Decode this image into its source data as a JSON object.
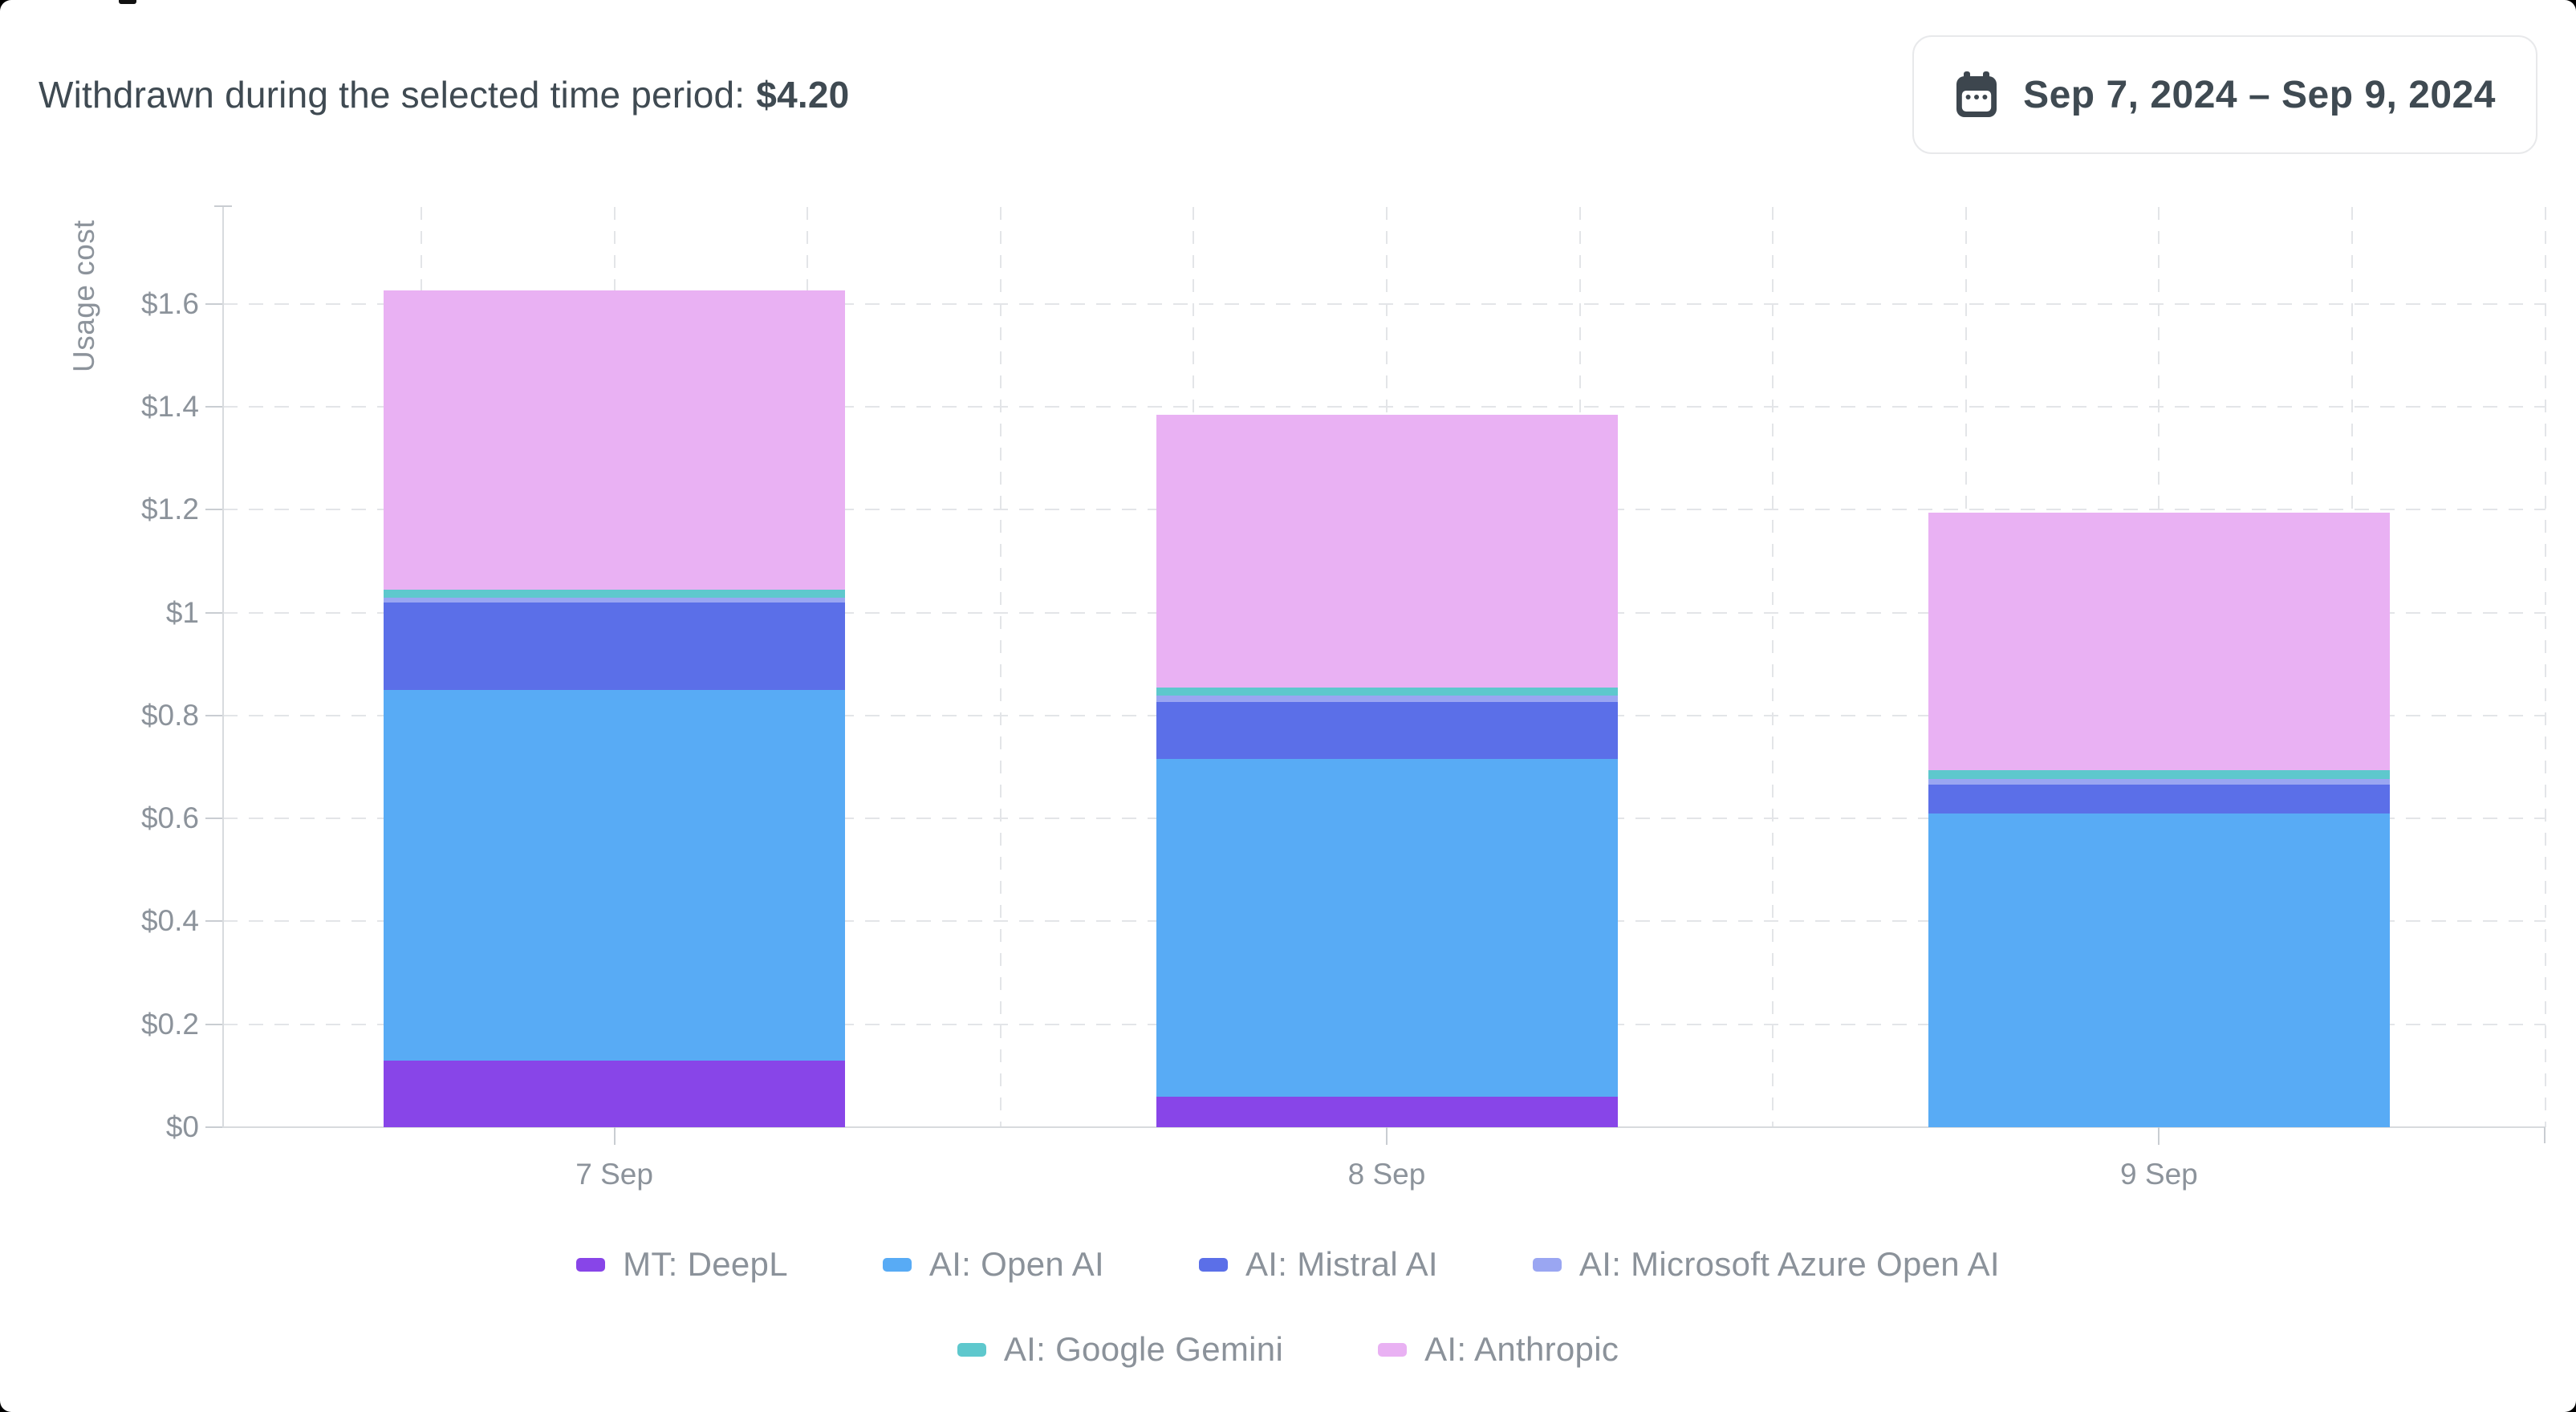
{
  "header": {
    "title_prefix": "Withdrawn during the selected time period:",
    "amount": "$4.20",
    "date_range": "Sep 7, 2024 – Sep 9, 2024"
  },
  "chart_data": {
    "type": "bar",
    "stacked": true,
    "title": "",
    "xlabel": "",
    "ylabel": "Usage cost",
    "categories": [
      "7 Sep",
      "8 Sep",
      "9 Sep"
    ],
    "series": [
      {
        "name": "MT: DeepL",
        "color": "#8845E8",
        "values": [
          0.13,
          0.06,
          0
        ]
      },
      {
        "name": "AI: Open AI",
        "color": "#58ABF5",
        "values": [
          0.72,
          0.655,
          0.61
        ]
      },
      {
        "name": "AI: Mistral AI",
        "color": "#5B6FE8",
        "values": [
          0.17,
          0.112,
          0.056
        ]
      },
      {
        "name": "AI: Microsoft Azure Open AI",
        "color": "#9AA6F2",
        "values": [
          0.009,
          0.011,
          0.011
        ]
      },
      {
        "name": "AI: Google Gemini",
        "color": "#5EC8CD",
        "values": [
          0.016,
          0.017,
          0.017
        ]
      },
      {
        "name": "AI: Anthropic",
        "color": "#E9B1F3",
        "values": [
          0.58,
          0.53,
          0.5
        ]
      }
    ],
    "bar_totals": [
      1.625,
      1.385,
      1.194
    ],
    "y_ticks": [
      "$0",
      "$0.2",
      "$0.4",
      "$0.6",
      "$0.8",
      "$1",
      "$1.2",
      "$1.4",
      "$1.6"
    ],
    "y_tick_values": [
      0,
      0.2,
      0.4,
      0.6,
      0.8,
      1.0,
      1.2,
      1.4,
      1.6
    ],
    "ylim": [
      0,
      1.79
    ],
    "grid": true,
    "legend_position": "bottom",
    "legend_rows": [
      [
        "MT: DeepL",
        "AI: Open AI",
        "AI: Mistral AI",
        "AI: Microsoft Azure Open AI"
      ],
      [
        "AI: Google Gemini",
        "AI: Anthropic"
      ]
    ]
  }
}
